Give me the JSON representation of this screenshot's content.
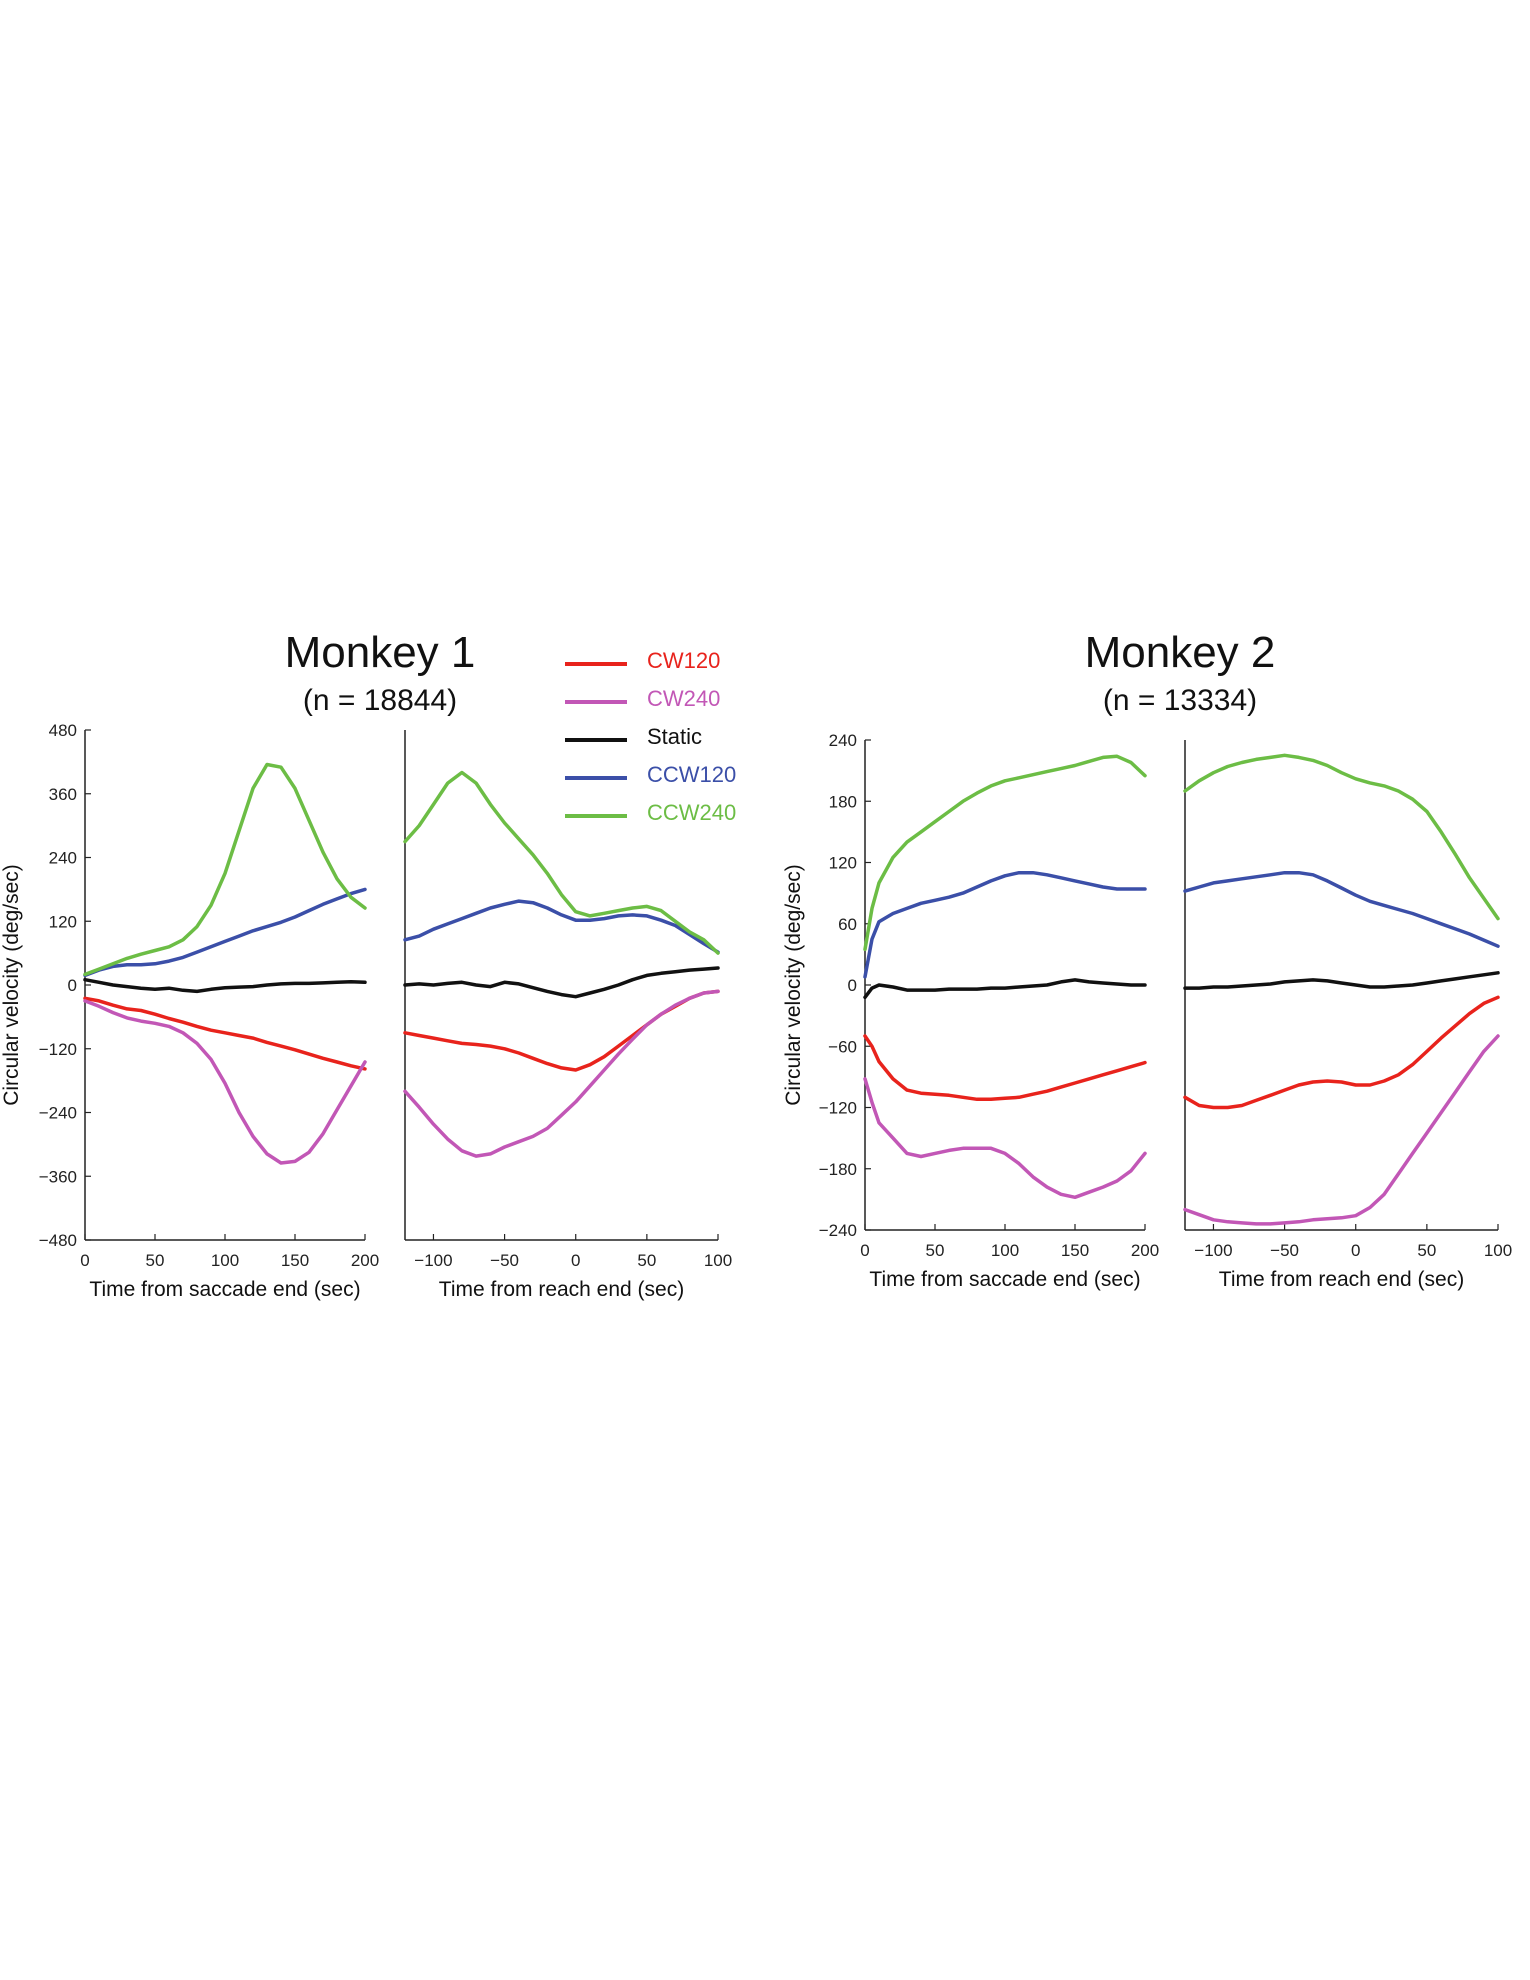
{
  "colors": {
    "CW120": "#e8231c",
    "CW240": "#c257b6",
    "Static": "#111111",
    "CCW120": "#3b4fa8",
    "CCW240": "#6cbd45"
  },
  "legend": [
    {
      "key": "CW120",
      "label": "CW120"
    },
    {
      "key": "CW240",
      "label": "CW240"
    },
    {
      "key": "Static",
      "label": "Static"
    },
    {
      "key": "CCW120",
      "label": "CCW120"
    },
    {
      "key": "CCW240",
      "label": "CCW240"
    }
  ],
  "monkeys": [
    {
      "title": "Monkey 1",
      "subtitle": "(n = 18844)"
    },
    {
      "title": "Monkey 2",
      "subtitle": "(n = 13334)"
    }
  ],
  "chart_data": [
    {
      "type": "line",
      "monkey": "Monkey 1",
      "panel": "saccade",
      "xlabel": "Time from saccade end (sec)",
      "ylabel": "Circular velocity (deg/sec)",
      "xlim": [
        0,
        200
      ],
      "ylim": [
        -480,
        480
      ],
      "xticks": [
        0,
        50,
        100,
        150,
        200
      ],
      "yticks": [
        -480,
        -360,
        -240,
        -120,
        0,
        120,
        240,
        360,
        480
      ],
      "series": [
        {
          "name": "CW120",
          "x": [
            0,
            10,
            20,
            30,
            40,
            50,
            60,
            70,
            80,
            90,
            100,
            110,
            120,
            130,
            140,
            150,
            160,
            170,
            180,
            190,
            200
          ],
          "y": [
            -25,
            -30,
            -38,
            -45,
            -48,
            -55,
            -63,
            -70,
            -78,
            -85,
            -90,
            -95,
            -100,
            -108,
            -115,
            -122,
            -130,
            -138,
            -145,
            -152,
            -158
          ]
        },
        {
          "name": "CW240",
          "x": [
            0,
            10,
            20,
            30,
            40,
            50,
            60,
            70,
            80,
            90,
            100,
            110,
            120,
            130,
            140,
            150,
            160,
            170,
            180,
            190,
            200
          ],
          "y": [
            -30,
            -40,
            -52,
            -62,
            -68,
            -72,
            -78,
            -90,
            -110,
            -140,
            -185,
            -240,
            -285,
            -318,
            -335,
            -332,
            -315,
            -280,
            -235,
            -190,
            -145
          ]
        },
        {
          "name": "Static",
          "x": [
            0,
            10,
            20,
            30,
            40,
            50,
            60,
            70,
            80,
            90,
            100,
            110,
            120,
            130,
            140,
            150,
            160,
            170,
            180,
            190,
            200
          ],
          "y": [
            10,
            5,
            0,
            -3,
            -6,
            -8,
            -6,
            -10,
            -12,
            -8,
            -5,
            -4,
            -3,
            0,
            2,
            3,
            3,
            4,
            5,
            6,
            5
          ]
        },
        {
          "name": "CCW120",
          "x": [
            0,
            10,
            20,
            30,
            40,
            50,
            60,
            70,
            80,
            90,
            100,
            110,
            120,
            130,
            140,
            150,
            160,
            170,
            180,
            190,
            200
          ],
          "y": [
            18,
            28,
            35,
            38,
            38,
            40,
            45,
            52,
            62,
            72,
            82,
            92,
            102,
            110,
            118,
            128,
            140,
            152,
            162,
            172,
            180
          ]
        },
        {
          "name": "CCW240",
          "x": [
            0,
            10,
            20,
            30,
            40,
            50,
            60,
            70,
            80,
            90,
            100,
            110,
            120,
            130,
            140,
            150,
            160,
            170,
            180,
            190,
            200
          ],
          "y": [
            20,
            30,
            40,
            50,
            58,
            65,
            72,
            85,
            110,
            150,
            210,
            290,
            370,
            415,
            410,
            370,
            310,
            250,
            200,
            165,
            145
          ]
        }
      ]
    },
    {
      "type": "line",
      "monkey": "Monkey 1",
      "panel": "reach",
      "xlabel": "Time from reach end (sec)",
      "ylabel": "",
      "xlim": [
        -120,
        100
      ],
      "ylim": [
        -480,
        480
      ],
      "xticks": [
        -100,
        -50,
        0,
        50,
        100
      ],
      "yticks": [],
      "series": [
        {
          "name": "CW120",
          "x": [
            -120,
            -110,
            -100,
            -90,
            -80,
            -70,
            -60,
            -50,
            -40,
            -30,
            -20,
            -10,
            0,
            10,
            20,
            30,
            40,
            50,
            60,
            70,
            80,
            90,
            100
          ],
          "y": [
            -90,
            -95,
            -100,
            -105,
            -110,
            -112,
            -115,
            -120,
            -128,
            -138,
            -148,
            -156,
            -160,
            -150,
            -135,
            -115,
            -95,
            -75,
            -55,
            -40,
            -25,
            -15,
            -12
          ]
        },
        {
          "name": "CW240",
          "x": [
            -120,
            -110,
            -100,
            -90,
            -80,
            -70,
            -60,
            -50,
            -40,
            -30,
            -20,
            -10,
            0,
            10,
            20,
            30,
            40,
            50,
            60,
            70,
            80,
            90,
            100
          ],
          "y": [
            -200,
            -230,
            -262,
            -290,
            -312,
            -322,
            -318,
            -305,
            -295,
            -285,
            -270,
            -245,
            -220,
            -190,
            -160,
            -130,
            -102,
            -75,
            -55,
            -38,
            -25,
            -15,
            -12
          ]
        },
        {
          "name": "Static",
          "x": [
            -120,
            -110,
            -100,
            -90,
            -80,
            -70,
            -60,
            -50,
            -40,
            -30,
            -20,
            -10,
            0,
            10,
            20,
            30,
            40,
            50,
            60,
            70,
            80,
            90,
            100
          ],
          "y": [
            0,
            2,
            0,
            3,
            5,
            0,
            -3,
            5,
            2,
            -5,
            -12,
            -18,
            -22,
            -15,
            -8,
            0,
            10,
            18,
            22,
            25,
            28,
            30,
            32
          ]
        },
        {
          "name": "CCW120",
          "x": [
            -120,
            -110,
            -100,
            -90,
            -80,
            -70,
            -60,
            -50,
            -40,
            -30,
            -20,
            -10,
            0,
            10,
            20,
            30,
            40,
            50,
            60,
            70,
            80,
            90,
            100
          ],
          "y": [
            85,
            92,
            105,
            115,
            125,
            135,
            145,
            152,
            158,
            155,
            145,
            132,
            122,
            122,
            125,
            130,
            132,
            130,
            122,
            112,
            95,
            78,
            62
          ]
        },
        {
          "name": "CCW240",
          "x": [
            -120,
            -110,
            -100,
            -90,
            -80,
            -70,
            -60,
            -50,
            -40,
            -30,
            -20,
            -10,
            0,
            10,
            20,
            30,
            40,
            50,
            60,
            70,
            80,
            90,
            100
          ],
          "y": [
            270,
            300,
            340,
            380,
            400,
            380,
            340,
            305,
            275,
            245,
            210,
            170,
            138,
            130,
            135,
            140,
            145,
            148,
            140,
            120,
            100,
            85,
            60
          ]
        }
      ]
    },
    {
      "type": "line",
      "monkey": "Monkey 2",
      "panel": "saccade",
      "xlabel": "Time from saccade end (sec)",
      "ylabel": "Circular velocity (deg/sec)",
      "xlim": [
        0,
        200
      ],
      "ylim": [
        -240,
        240
      ],
      "xticks": [
        0,
        50,
        100,
        150,
        200
      ],
      "yticks": [
        -240,
        -180,
        -120,
        -60,
        0,
        60,
        120,
        180,
        240
      ],
      "series": [
        {
          "name": "CW120",
          "x": [
            0,
            5,
            10,
            20,
            30,
            40,
            50,
            60,
            70,
            80,
            90,
            100,
            110,
            120,
            130,
            140,
            150,
            160,
            170,
            180,
            190,
            200
          ],
          "y": [
            -50,
            -60,
            -75,
            -92,
            -103,
            -106,
            -107,
            -108,
            -110,
            -112,
            -112,
            -111,
            -110,
            -107,
            -104,
            -100,
            -96,
            -92,
            -88,
            -84,
            -80,
            -76
          ]
        },
        {
          "name": "CW240",
          "x": [
            0,
            5,
            10,
            20,
            30,
            40,
            50,
            60,
            70,
            80,
            90,
            100,
            110,
            120,
            130,
            140,
            150,
            160,
            170,
            180,
            190,
            200
          ],
          "y": [
            -92,
            -115,
            -135,
            -150,
            -165,
            -168,
            -165,
            -162,
            -160,
            -160,
            -160,
            -165,
            -175,
            -188,
            -198,
            -205,
            -208,
            -203,
            -198,
            -192,
            -182,
            -165
          ]
        },
        {
          "name": "Static",
          "x": [
            0,
            5,
            10,
            20,
            30,
            40,
            50,
            60,
            70,
            80,
            90,
            100,
            110,
            120,
            130,
            140,
            150,
            160,
            170,
            180,
            190,
            200
          ],
          "y": [
            -12,
            -3,
            0,
            -2,
            -5,
            -5,
            -5,
            -4,
            -4,
            -4,
            -3,
            -3,
            -2,
            -1,
            0,
            3,
            5,
            3,
            2,
            1,
            0,
            0
          ]
        },
        {
          "name": "CCW120",
          "x": [
            0,
            5,
            10,
            20,
            30,
            40,
            50,
            60,
            70,
            80,
            90,
            100,
            110,
            120,
            130,
            140,
            150,
            160,
            170,
            180,
            190,
            200
          ],
          "y": [
            8,
            45,
            62,
            70,
            75,
            80,
            83,
            86,
            90,
            96,
            102,
            107,
            110,
            110,
            108,
            105,
            102,
            99,
            96,
            94,
            94,
            94
          ]
        },
        {
          "name": "CCW240",
          "x": [
            0,
            5,
            10,
            20,
            30,
            40,
            50,
            60,
            70,
            80,
            90,
            100,
            110,
            120,
            130,
            140,
            150,
            160,
            170,
            180,
            190,
            200
          ],
          "y": [
            35,
            75,
            100,
            125,
            140,
            150,
            160,
            170,
            180,
            188,
            195,
            200,
            203,
            206,
            209,
            212,
            215,
            219,
            223,
            224,
            218,
            205
          ]
        }
      ]
    },
    {
      "type": "line",
      "monkey": "Monkey 2",
      "panel": "reach",
      "xlabel": "Time from reach end (sec)",
      "ylabel": "",
      "xlim": [
        -120,
        100
      ],
      "ylim": [
        -240,
        240
      ],
      "xticks": [
        -100,
        -50,
        0,
        50,
        100
      ],
      "yticks": [],
      "series": [
        {
          "name": "CW120",
          "x": [
            -120,
            -110,
            -100,
            -90,
            -80,
            -70,
            -60,
            -50,
            -40,
            -30,
            -20,
            -10,
            0,
            10,
            20,
            30,
            40,
            50,
            60,
            70,
            80,
            90,
            100
          ],
          "y": [
            -110,
            -118,
            -120,
            -120,
            -118,
            -113,
            -108,
            -103,
            -98,
            -95,
            -94,
            -95,
            -98,
            -98,
            -94,
            -88,
            -78,
            -65,
            -52,
            -40,
            -28,
            -18,
            -12
          ]
        },
        {
          "name": "CW240",
          "x": [
            -120,
            -110,
            -100,
            -90,
            -80,
            -70,
            -60,
            -50,
            -40,
            -30,
            -20,
            -10,
            0,
            10,
            20,
            30,
            40,
            50,
            60,
            70,
            80,
            90,
            100
          ],
          "y": [
            -220,
            -225,
            -230,
            -232,
            -233,
            -234,
            -234,
            -233,
            -232,
            -230,
            -229,
            -228,
            -226,
            -218,
            -205,
            -185,
            -165,
            -145,
            -125,
            -105,
            -85,
            -65,
            -50
          ]
        },
        {
          "name": "Static",
          "x": [
            -120,
            -110,
            -100,
            -90,
            -80,
            -70,
            -60,
            -50,
            -40,
            -30,
            -20,
            -10,
            0,
            10,
            20,
            30,
            40,
            50,
            60,
            70,
            80,
            90,
            100
          ],
          "y": [
            -3,
            -3,
            -2,
            -2,
            -1,
            0,
            1,
            3,
            4,
            5,
            4,
            2,
            0,
            -2,
            -2,
            -1,
            0,
            2,
            4,
            6,
            8,
            10,
            12
          ]
        },
        {
          "name": "CCW120",
          "x": [
            -120,
            -110,
            -100,
            -90,
            -80,
            -70,
            -60,
            -50,
            -40,
            -30,
            -20,
            -10,
            0,
            10,
            20,
            30,
            40,
            50,
            60,
            70,
            80,
            90,
            100
          ],
          "y": [
            92,
            96,
            100,
            102,
            104,
            106,
            108,
            110,
            110,
            108,
            102,
            95,
            88,
            82,
            78,
            74,
            70,
            65,
            60,
            55,
            50,
            44,
            38
          ]
        },
        {
          "name": "CCW240",
          "x": [
            -120,
            -110,
            -100,
            -90,
            -80,
            -70,
            -60,
            -50,
            -40,
            -30,
            -20,
            -10,
            0,
            10,
            20,
            30,
            40,
            50,
            60,
            70,
            80,
            90,
            100
          ],
          "y": [
            190,
            200,
            208,
            214,
            218,
            221,
            223,
            225,
            223,
            220,
            215,
            208,
            202,
            198,
            195,
            190,
            182,
            170,
            150,
            128,
            105,
            85,
            65
          ]
        }
      ]
    }
  ]
}
